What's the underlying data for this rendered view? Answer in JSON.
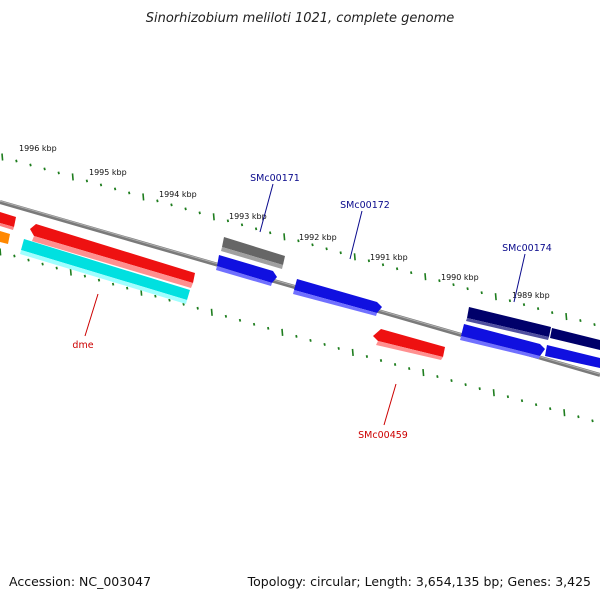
{
  "title": "Sinorhizobium meliloti 1021, complete genome",
  "footer": {
    "accession": "Accession: NC_003047",
    "summary": "Topology: circular; Length: 3,654,135 bp; Genes: 3,425"
  },
  "scale": {
    "ticks": [
      "1996 kbp",
      "1995 kbp",
      "1994 kbp",
      "1993 kbp",
      "1992 kbp",
      "1991 kbp",
      "1990 kbp",
      "1989 kbp"
    ]
  },
  "genes": [
    {
      "name": "SMc00171",
      "strand": "forward",
      "color": "#0a0a8c"
    },
    {
      "name": "SMc00172",
      "strand": "forward",
      "color": "#0a0a8c"
    },
    {
      "name": "SMc00174",
      "strand": "forward",
      "color": "#0a0a8c"
    },
    {
      "name": "dme",
      "strand": "reverse",
      "color": "#cc0000"
    },
    {
      "name": "SMc00459",
      "strand": "reverse",
      "color": "#cc0000"
    }
  ],
  "colors": {
    "backbone": "#808080",
    "tick": "#1e7d1e",
    "forward_label": "#0a0a8c",
    "reverse_label": "#cc0000",
    "red_feature": "#ee1111",
    "blue_feature": "#1010e0",
    "cyan_feature": "#00e0e0",
    "navy_feature": "#00006a",
    "gray_feature": "#666666",
    "orange_feature": "#ff8800"
  }
}
